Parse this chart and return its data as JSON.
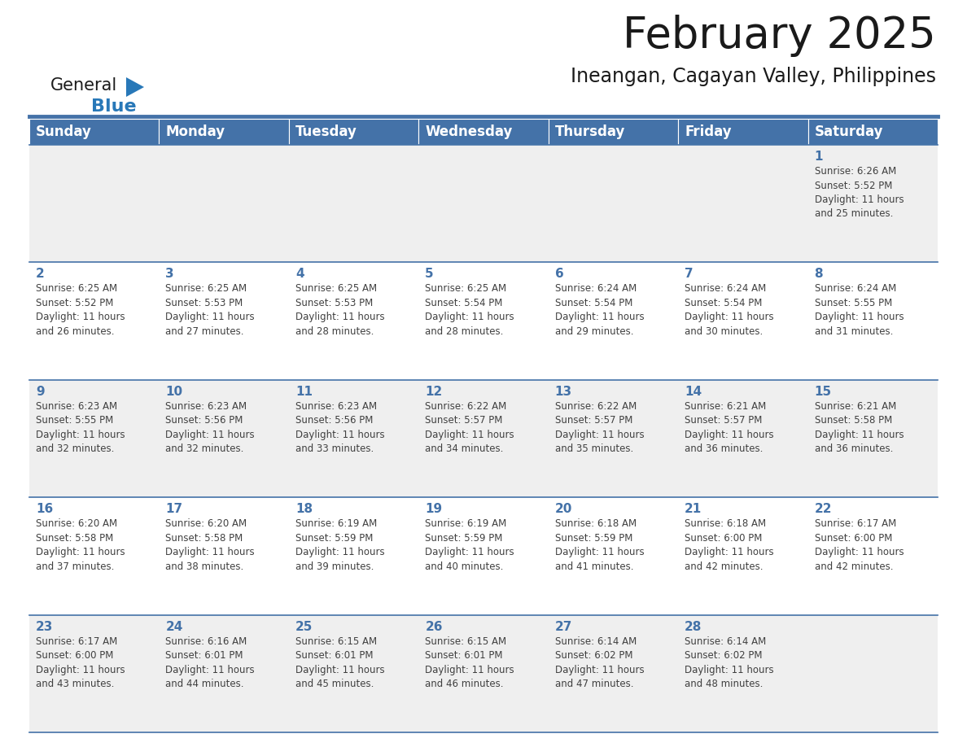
{
  "title": "February 2025",
  "subtitle": "Ineangan, Cagayan Valley, Philippines",
  "header_bg_color": "#4472A8",
  "header_text_color": "#FFFFFF",
  "days_of_week": [
    "Sunday",
    "Monday",
    "Tuesday",
    "Wednesday",
    "Thursday",
    "Friday",
    "Saturday"
  ],
  "row0_bg": "#EFEFEF",
  "row1_bg": "#FFFFFF",
  "row2_bg": "#EFEFEF",
  "row3_bg": "#FFFFFF",
  "row4_bg": "#EFEFEF",
  "cell_border_color": "#4472A8",
  "day_number_color": "#4472A8",
  "text_color": "#404040",
  "calendar_data": [
    [
      {
        "day": "",
        "info": ""
      },
      {
        "day": "",
        "info": ""
      },
      {
        "day": "",
        "info": ""
      },
      {
        "day": "",
        "info": ""
      },
      {
        "day": "",
        "info": ""
      },
      {
        "day": "",
        "info": ""
      },
      {
        "day": "1",
        "info": "Sunrise: 6:26 AM\nSunset: 5:52 PM\nDaylight: 11 hours\nand 25 minutes."
      }
    ],
    [
      {
        "day": "2",
        "info": "Sunrise: 6:25 AM\nSunset: 5:52 PM\nDaylight: 11 hours\nand 26 minutes."
      },
      {
        "day": "3",
        "info": "Sunrise: 6:25 AM\nSunset: 5:53 PM\nDaylight: 11 hours\nand 27 minutes."
      },
      {
        "day": "4",
        "info": "Sunrise: 6:25 AM\nSunset: 5:53 PM\nDaylight: 11 hours\nand 28 minutes."
      },
      {
        "day": "5",
        "info": "Sunrise: 6:25 AM\nSunset: 5:54 PM\nDaylight: 11 hours\nand 28 minutes."
      },
      {
        "day": "6",
        "info": "Sunrise: 6:24 AM\nSunset: 5:54 PM\nDaylight: 11 hours\nand 29 minutes."
      },
      {
        "day": "7",
        "info": "Sunrise: 6:24 AM\nSunset: 5:54 PM\nDaylight: 11 hours\nand 30 minutes."
      },
      {
        "day": "8",
        "info": "Sunrise: 6:24 AM\nSunset: 5:55 PM\nDaylight: 11 hours\nand 31 minutes."
      }
    ],
    [
      {
        "day": "9",
        "info": "Sunrise: 6:23 AM\nSunset: 5:55 PM\nDaylight: 11 hours\nand 32 minutes."
      },
      {
        "day": "10",
        "info": "Sunrise: 6:23 AM\nSunset: 5:56 PM\nDaylight: 11 hours\nand 32 minutes."
      },
      {
        "day": "11",
        "info": "Sunrise: 6:23 AM\nSunset: 5:56 PM\nDaylight: 11 hours\nand 33 minutes."
      },
      {
        "day": "12",
        "info": "Sunrise: 6:22 AM\nSunset: 5:57 PM\nDaylight: 11 hours\nand 34 minutes."
      },
      {
        "day": "13",
        "info": "Sunrise: 6:22 AM\nSunset: 5:57 PM\nDaylight: 11 hours\nand 35 minutes."
      },
      {
        "day": "14",
        "info": "Sunrise: 6:21 AM\nSunset: 5:57 PM\nDaylight: 11 hours\nand 36 minutes."
      },
      {
        "day": "15",
        "info": "Sunrise: 6:21 AM\nSunset: 5:58 PM\nDaylight: 11 hours\nand 36 minutes."
      }
    ],
    [
      {
        "day": "16",
        "info": "Sunrise: 6:20 AM\nSunset: 5:58 PM\nDaylight: 11 hours\nand 37 minutes."
      },
      {
        "day": "17",
        "info": "Sunrise: 6:20 AM\nSunset: 5:58 PM\nDaylight: 11 hours\nand 38 minutes."
      },
      {
        "day": "18",
        "info": "Sunrise: 6:19 AM\nSunset: 5:59 PM\nDaylight: 11 hours\nand 39 minutes."
      },
      {
        "day": "19",
        "info": "Sunrise: 6:19 AM\nSunset: 5:59 PM\nDaylight: 11 hours\nand 40 minutes."
      },
      {
        "day": "20",
        "info": "Sunrise: 6:18 AM\nSunset: 5:59 PM\nDaylight: 11 hours\nand 41 minutes."
      },
      {
        "day": "21",
        "info": "Sunrise: 6:18 AM\nSunset: 6:00 PM\nDaylight: 11 hours\nand 42 minutes."
      },
      {
        "day": "22",
        "info": "Sunrise: 6:17 AM\nSunset: 6:00 PM\nDaylight: 11 hours\nand 42 minutes."
      }
    ],
    [
      {
        "day": "23",
        "info": "Sunrise: 6:17 AM\nSunset: 6:00 PM\nDaylight: 11 hours\nand 43 minutes."
      },
      {
        "day": "24",
        "info": "Sunrise: 6:16 AM\nSunset: 6:01 PM\nDaylight: 11 hours\nand 44 minutes."
      },
      {
        "day": "25",
        "info": "Sunrise: 6:15 AM\nSunset: 6:01 PM\nDaylight: 11 hours\nand 45 minutes."
      },
      {
        "day": "26",
        "info": "Sunrise: 6:15 AM\nSunset: 6:01 PM\nDaylight: 11 hours\nand 46 minutes."
      },
      {
        "day": "27",
        "info": "Sunrise: 6:14 AM\nSunset: 6:02 PM\nDaylight: 11 hours\nand 47 minutes."
      },
      {
        "day": "28",
        "info": "Sunrise: 6:14 AM\nSunset: 6:02 PM\nDaylight: 11 hours\nand 48 minutes."
      },
      {
        "day": "",
        "info": ""
      }
    ]
  ],
  "title_fontsize": 38,
  "subtitle_fontsize": 17,
  "header_fontsize": 12,
  "day_number_fontsize": 11,
  "info_fontsize": 8.5,
  "logo_general_fontsize": 15,
  "logo_blue_fontsize": 16,
  "logo_triangle_color": "#2878B8"
}
